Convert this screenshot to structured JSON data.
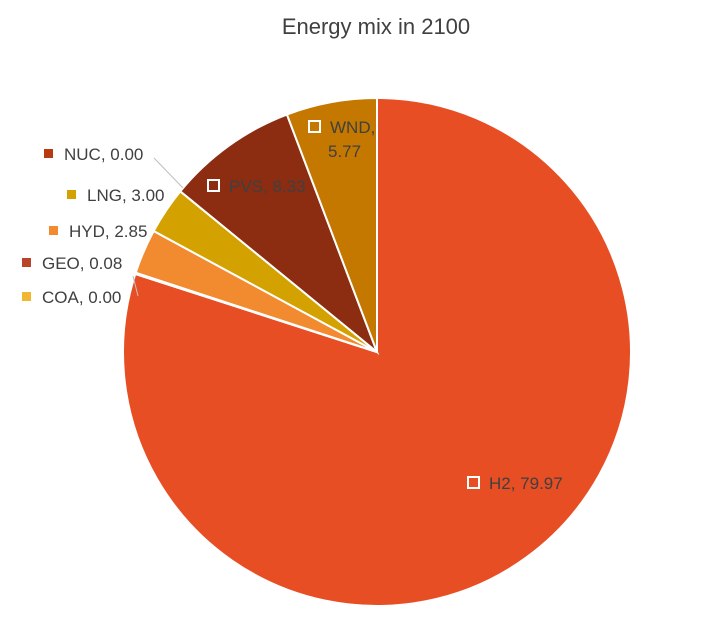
{
  "chart_data": {
    "type": "pie",
    "title": "Energy mix in 2100",
    "slices": [
      {
        "label": "H2",
        "value": 79.97,
        "value_text": "79.97",
        "color": "#E84E24",
        "label_style": "inside"
      },
      {
        "label": "COA",
        "value": 0.0,
        "value_text": "0.00",
        "color": "#F2B731",
        "label_style": "outside"
      },
      {
        "label": "GEO",
        "value": 0.08,
        "value_text": "0.08",
        "color": "#B8452A",
        "label_style": "outside"
      },
      {
        "label": "HYD",
        "value": 2.85,
        "value_text": "2.85",
        "color": "#F28A30",
        "label_style": "outside"
      },
      {
        "label": "LNG",
        "value": 3.0,
        "value_text": "3.00",
        "color": "#D4A200",
        "label_style": "outside"
      },
      {
        "label": "NUC",
        "value": 0.0,
        "value_text": "0.00",
        "color": "#B83B10",
        "label_style": "outside"
      },
      {
        "label": "PVS",
        "value": 8.33,
        "value_text": "8.33",
        "color": "#8C2D12",
        "label_style": "inside"
      },
      {
        "label": "WND",
        "value": 5.77,
        "value_text": "5.77",
        "color": "#C47800",
        "label_style": "inside"
      }
    ]
  }
}
